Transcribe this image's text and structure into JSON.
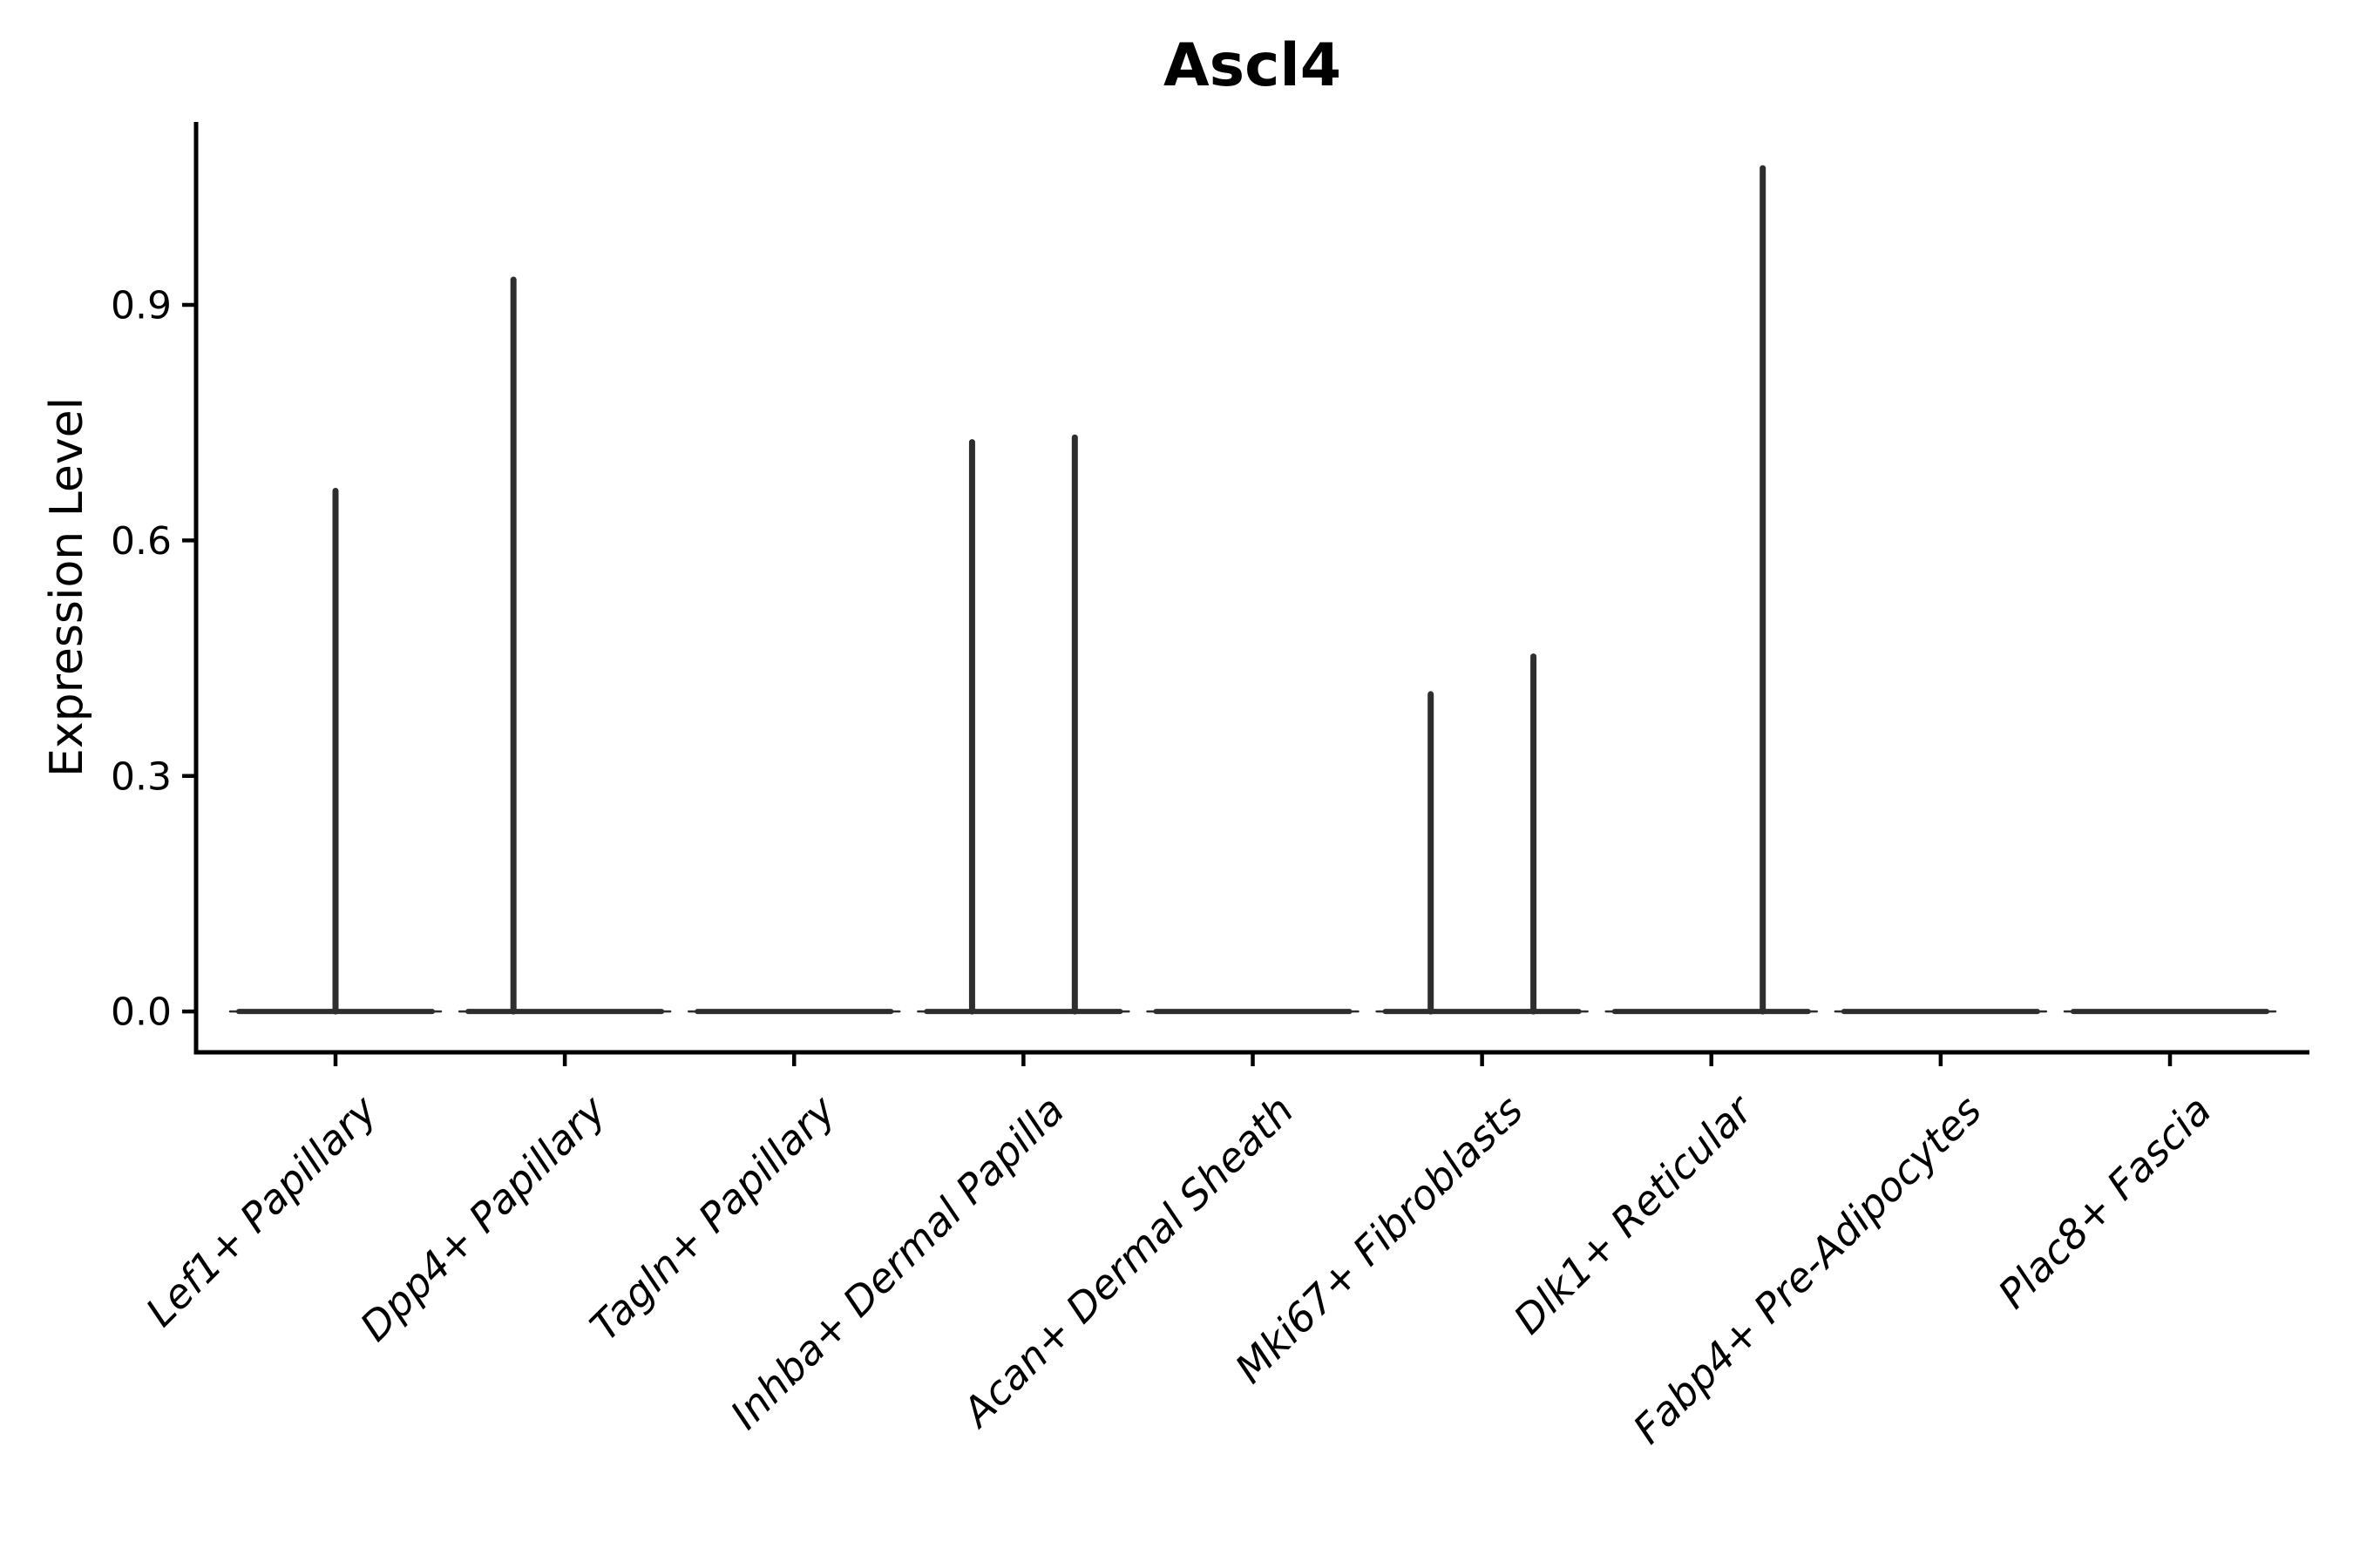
{
  "title": "Ascl4",
  "ylabel": "Expression Level",
  "xlabel": "",
  "chart_data": {
    "type": "violin",
    "title": "Ascl4",
    "ylabel": "Expression Level",
    "xlabel": "",
    "grid": false,
    "legend": false,
    "background": "#ffffff",
    "axis_color": "#000000",
    "violin_color": "#2e2e2e",
    "ylim": [
      -0.052,
      1.133
    ],
    "y_ticks": [
      0.0,
      0.3,
      0.6,
      0.9
    ],
    "y_tick_labels": [
      "0.0",
      "0.3",
      "0.6",
      "0.9"
    ],
    "x_tick_rotation_deg": 45,
    "x_tick_style": "italic",
    "baseline_halfwidth_frac": 0.46,
    "categories": [
      "Lef1+ Papillary",
      "Dpp4+ Papillary",
      "Tagln+ Papillary",
      "Inhba+ Dermal Papilla",
      "Acan+ Dermal Sheath",
      "Mki67+ Fibroblasts",
      "Dlk1+ Reticular",
      "Fabp4+ Pre-Adipocytes",
      "Plac8+ Fascia"
    ],
    "violins": [
      {
        "category": "Lef1+ Papillary",
        "baseline_value": 0.0,
        "spikes": [
          {
            "offset_frac": 0.0,
            "value": 0.667
          }
        ]
      },
      {
        "category": "Dpp4+ Papillary",
        "baseline_value": 0.0,
        "spikes": [
          {
            "offset_frac": -0.224,
            "value": 0.936
          }
        ]
      },
      {
        "category": "Tagln+ Papillary",
        "baseline_value": 0.0,
        "spikes": []
      },
      {
        "category": "Inhba+ Dermal Papilla",
        "baseline_value": 0.0,
        "spikes": [
          {
            "offset_frac": -0.224,
            "value": 0.729
          },
          {
            "offset_frac": 0.224,
            "value": 0.735
          }
        ]
      },
      {
        "category": "Acan+ Dermal Sheath",
        "baseline_value": 0.0,
        "spikes": []
      },
      {
        "category": "Mki67+ Fibroblasts",
        "baseline_value": 0.0,
        "spikes": [
          {
            "offset_frac": -0.224,
            "value": 0.408
          },
          {
            "offset_frac": 0.224,
            "value": 0.456
          }
        ]
      },
      {
        "category": "Dlk1+ Reticular",
        "baseline_value": 0.0,
        "spikes": [
          {
            "offset_frac": 0.224,
            "value": 1.078
          }
        ]
      },
      {
        "category": "Fabp4+ Pre-Adipocytes",
        "baseline_value": 0.0,
        "spikes": []
      },
      {
        "category": "Plac8+ Fascia",
        "baseline_value": 0.0,
        "spikes": []
      }
    ]
  }
}
